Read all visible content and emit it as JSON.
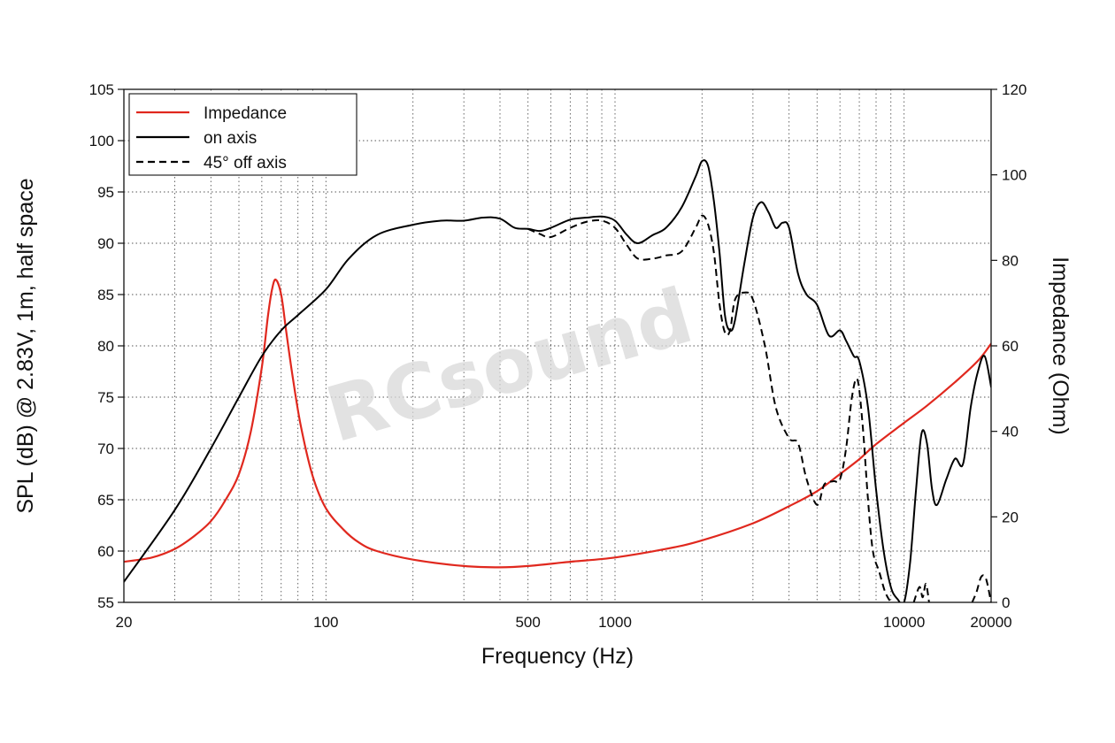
{
  "chart_data": {
    "type": "line",
    "x_scale": "log",
    "xlim": [
      20,
      20000
    ],
    "ylim_left": [
      55,
      105
    ],
    "ylim_right": [
      0,
      120
    ],
    "grid": true,
    "legend_placement": "top-left",
    "xlabel": "Frequency (Hz)",
    "ylabel_left": "SPL (dB) @ 2.83V, 1m, half space",
    "ylabel_right": "Impedance (Ohm)",
    "x_tick_labels": [
      "20",
      "100",
      "500",
      "1000",
      "10000",
      "20000"
    ],
    "x_ticks": [
      20,
      100,
      500,
      1000,
      10000,
      20000
    ],
    "y_left_ticks": [
      55,
      60,
      65,
      70,
      75,
      80,
      85,
      90,
      95,
      100,
      105
    ],
    "y_left_tick_labels": [
      "55",
      "60",
      "65",
      "70",
      "75",
      "80",
      "85",
      "90",
      "95",
      "100",
      "105"
    ],
    "y_right_ticks": [
      0,
      20,
      40,
      60,
      80,
      100,
      120
    ],
    "y_right_tick_labels": [
      "0",
      "20",
      "40",
      "60",
      "80",
      "100",
      "120"
    ],
    "watermark": "RCsound",
    "colors": {
      "impedance": "#e0281e",
      "on_axis": "#000000",
      "off_axis": "#000000"
    },
    "series": [
      {
        "name": "Impedance",
        "axis": "right",
        "style": "solid",
        "color": "#e0281e",
        "points": [
          [
            20,
            9.5
          ],
          [
            25,
            10.5
          ],
          [
            30,
            12.5
          ],
          [
            35,
            15.5
          ],
          [
            40,
            19
          ],
          [
            45,
            24
          ],
          [
            50,
            30
          ],
          [
            55,
            40
          ],
          [
            60,
            55
          ],
          [
            63,
            67
          ],
          [
            65,
            73
          ],
          [
            67,
            75.5
          ],
          [
            70,
            72
          ],
          [
            73,
            63
          ],
          [
            77,
            52
          ],
          [
            82,
            41
          ],
          [
            90,
            29.5
          ],
          [
            100,
            22
          ],
          [
            115,
            17
          ],
          [
            130,
            14
          ],
          [
            150,
            12
          ],
          [
            200,
            10
          ],
          [
            300,
            8.5
          ],
          [
            400,
            8.2
          ],
          [
            500,
            8.5
          ],
          [
            700,
            9.5
          ],
          [
            1000,
            10.5
          ],
          [
            1500,
            12.5
          ],
          [
            2000,
            14.5
          ],
          [
            3000,
            18.5
          ],
          [
            4000,
            22.5
          ],
          [
            5000,
            26
          ],
          [
            6000,
            30
          ],
          [
            7000,
            33.5
          ],
          [
            8000,
            37
          ],
          [
            10000,
            42
          ],
          [
            12000,
            46
          ],
          [
            15000,
            51.5
          ],
          [
            18000,
            56.5
          ],
          [
            20000,
            60.5
          ]
        ]
      },
      {
        "name": "on axis",
        "axis": "left",
        "style": "solid",
        "color": "#000000",
        "points": [
          [
            20,
            57
          ],
          [
            30,
            64
          ],
          [
            40,
            70
          ],
          [
            50,
            75
          ],
          [
            60,
            79
          ],
          [
            70,
            81.5
          ],
          [
            80,
            83
          ],
          [
            100,
            85.5
          ],
          [
            120,
            88.5
          ],
          [
            150,
            90.8
          ],
          [
            200,
            91.8
          ],
          [
            250,
            92.2
          ],
          [
            300,
            92.2
          ],
          [
            350,
            92.5
          ],
          [
            400,
            92.4
          ],
          [
            450,
            91.5
          ],
          [
            500,
            91.4
          ],
          [
            550,
            91.2
          ],
          [
            600,
            91.5
          ],
          [
            700,
            92.3
          ],
          [
            800,
            92.5
          ],
          [
            900,
            92.6
          ],
          [
            1000,
            92.2
          ],
          [
            1100,
            90.8
          ],
          [
            1200,
            90
          ],
          [
            1350,
            90.8
          ],
          [
            1500,
            91.5
          ],
          [
            1700,
            93.5
          ],
          [
            1900,
            96.5
          ],
          [
            2000,
            98
          ],
          [
            2100,
            97.5
          ],
          [
            2200,
            94
          ],
          [
            2300,
            89
          ],
          [
            2400,
            83
          ],
          [
            2500,
            81.5
          ],
          [
            2600,
            82.5
          ],
          [
            2800,
            88
          ],
          [
            3000,
            92.5
          ],
          [
            3200,
            94
          ],
          [
            3400,
            93
          ],
          [
            3600,
            91.5
          ],
          [
            3800,
            92
          ],
          [
            4000,
            91.5
          ],
          [
            4300,
            87
          ],
          [
            4600,
            85
          ],
          [
            5000,
            84
          ],
          [
            5500,
            81
          ],
          [
            6000,
            81.5
          ],
          [
            6300,
            80.5
          ],
          [
            6700,
            79
          ],
          [
            7000,
            78.5
          ],
          [
            7500,
            74
          ],
          [
            8000,
            66
          ],
          [
            8500,
            60
          ],
          [
            9000,
            56.5
          ],
          [
            9500,
            55.3
          ],
          [
            10000,
            55
          ],
          [
            10500,
            59
          ],
          [
            11000,
            66
          ],
          [
            11500,
            71.5
          ],
          [
            12000,
            70.5
          ],
          [
            12500,
            66
          ],
          [
            13000,
            64.5
          ],
          [
            14000,
            67
          ],
          [
            15000,
            69
          ],
          [
            16000,
            68.5
          ],
          [
            17000,
            74
          ],
          [
            18000,
            77.5
          ],
          [
            19000,
            79
          ],
          [
            20000,
            76
          ]
        ]
      },
      {
        "name": "45° off axis",
        "axis": "left",
        "style": "dashed",
        "color": "#000000",
        "points": [
          [
            500,
            91.4
          ],
          [
            550,
            90.9
          ],
          [
            600,
            90.6
          ],
          [
            700,
            91.5
          ],
          [
            800,
            92.1
          ],
          [
            900,
            92.2
          ],
          [
            1000,
            91.5
          ],
          [
            1100,
            89.8
          ],
          [
            1200,
            88.5
          ],
          [
            1350,
            88.5
          ],
          [
            1500,
            88.8
          ],
          [
            1700,
            89.2
          ],
          [
            1900,
            91.5
          ],
          [
            2000,
            92.7
          ],
          [
            2100,
            91.8
          ],
          [
            2200,
            89
          ],
          [
            2300,
            84
          ],
          [
            2400,
            81.3
          ],
          [
            2500,
            81.5
          ],
          [
            2600,
            84.5
          ],
          [
            2800,
            85.2
          ],
          [
            3000,
            84.5
          ],
          [
            3300,
            80
          ],
          [
            3600,
            74
          ],
          [
            4000,
            71
          ],
          [
            4300,
            70.5
          ],
          [
            4600,
            67
          ],
          [
            5000,
            64.5
          ],
          [
            5300,
            66.5
          ],
          [
            5700,
            66.8
          ],
          [
            6000,
            67
          ],
          [
            6300,
            70
          ],
          [
            6600,
            75
          ],
          [
            6900,
            76.7
          ],
          [
            7200,
            72
          ],
          [
            7500,
            65
          ],
          [
            7800,
            60
          ],
          [
            8200,
            58
          ],
          [
            8600,
            56
          ],
          [
            9000,
            55
          ]
        ]
      },
      {
        "name": "",
        "axis": "left",
        "style": "dashed",
        "color": "#000000",
        "points": [
          [
            10800,
            55
          ],
          [
            11300,
            56.5
          ],
          [
            11600,
            55.5
          ],
          [
            11900,
            56.8
          ],
          [
            12200,
            55
          ]
        ]
      },
      {
        "name": "",
        "axis": "left",
        "style": "dashed",
        "color": "#000000",
        "points": [
          [
            17200,
            55
          ],
          [
            17800,
            56
          ],
          [
            18500,
            57.5
          ],
          [
            19200,
            57.3
          ],
          [
            20000,
            55
          ]
        ]
      }
    ]
  }
}
